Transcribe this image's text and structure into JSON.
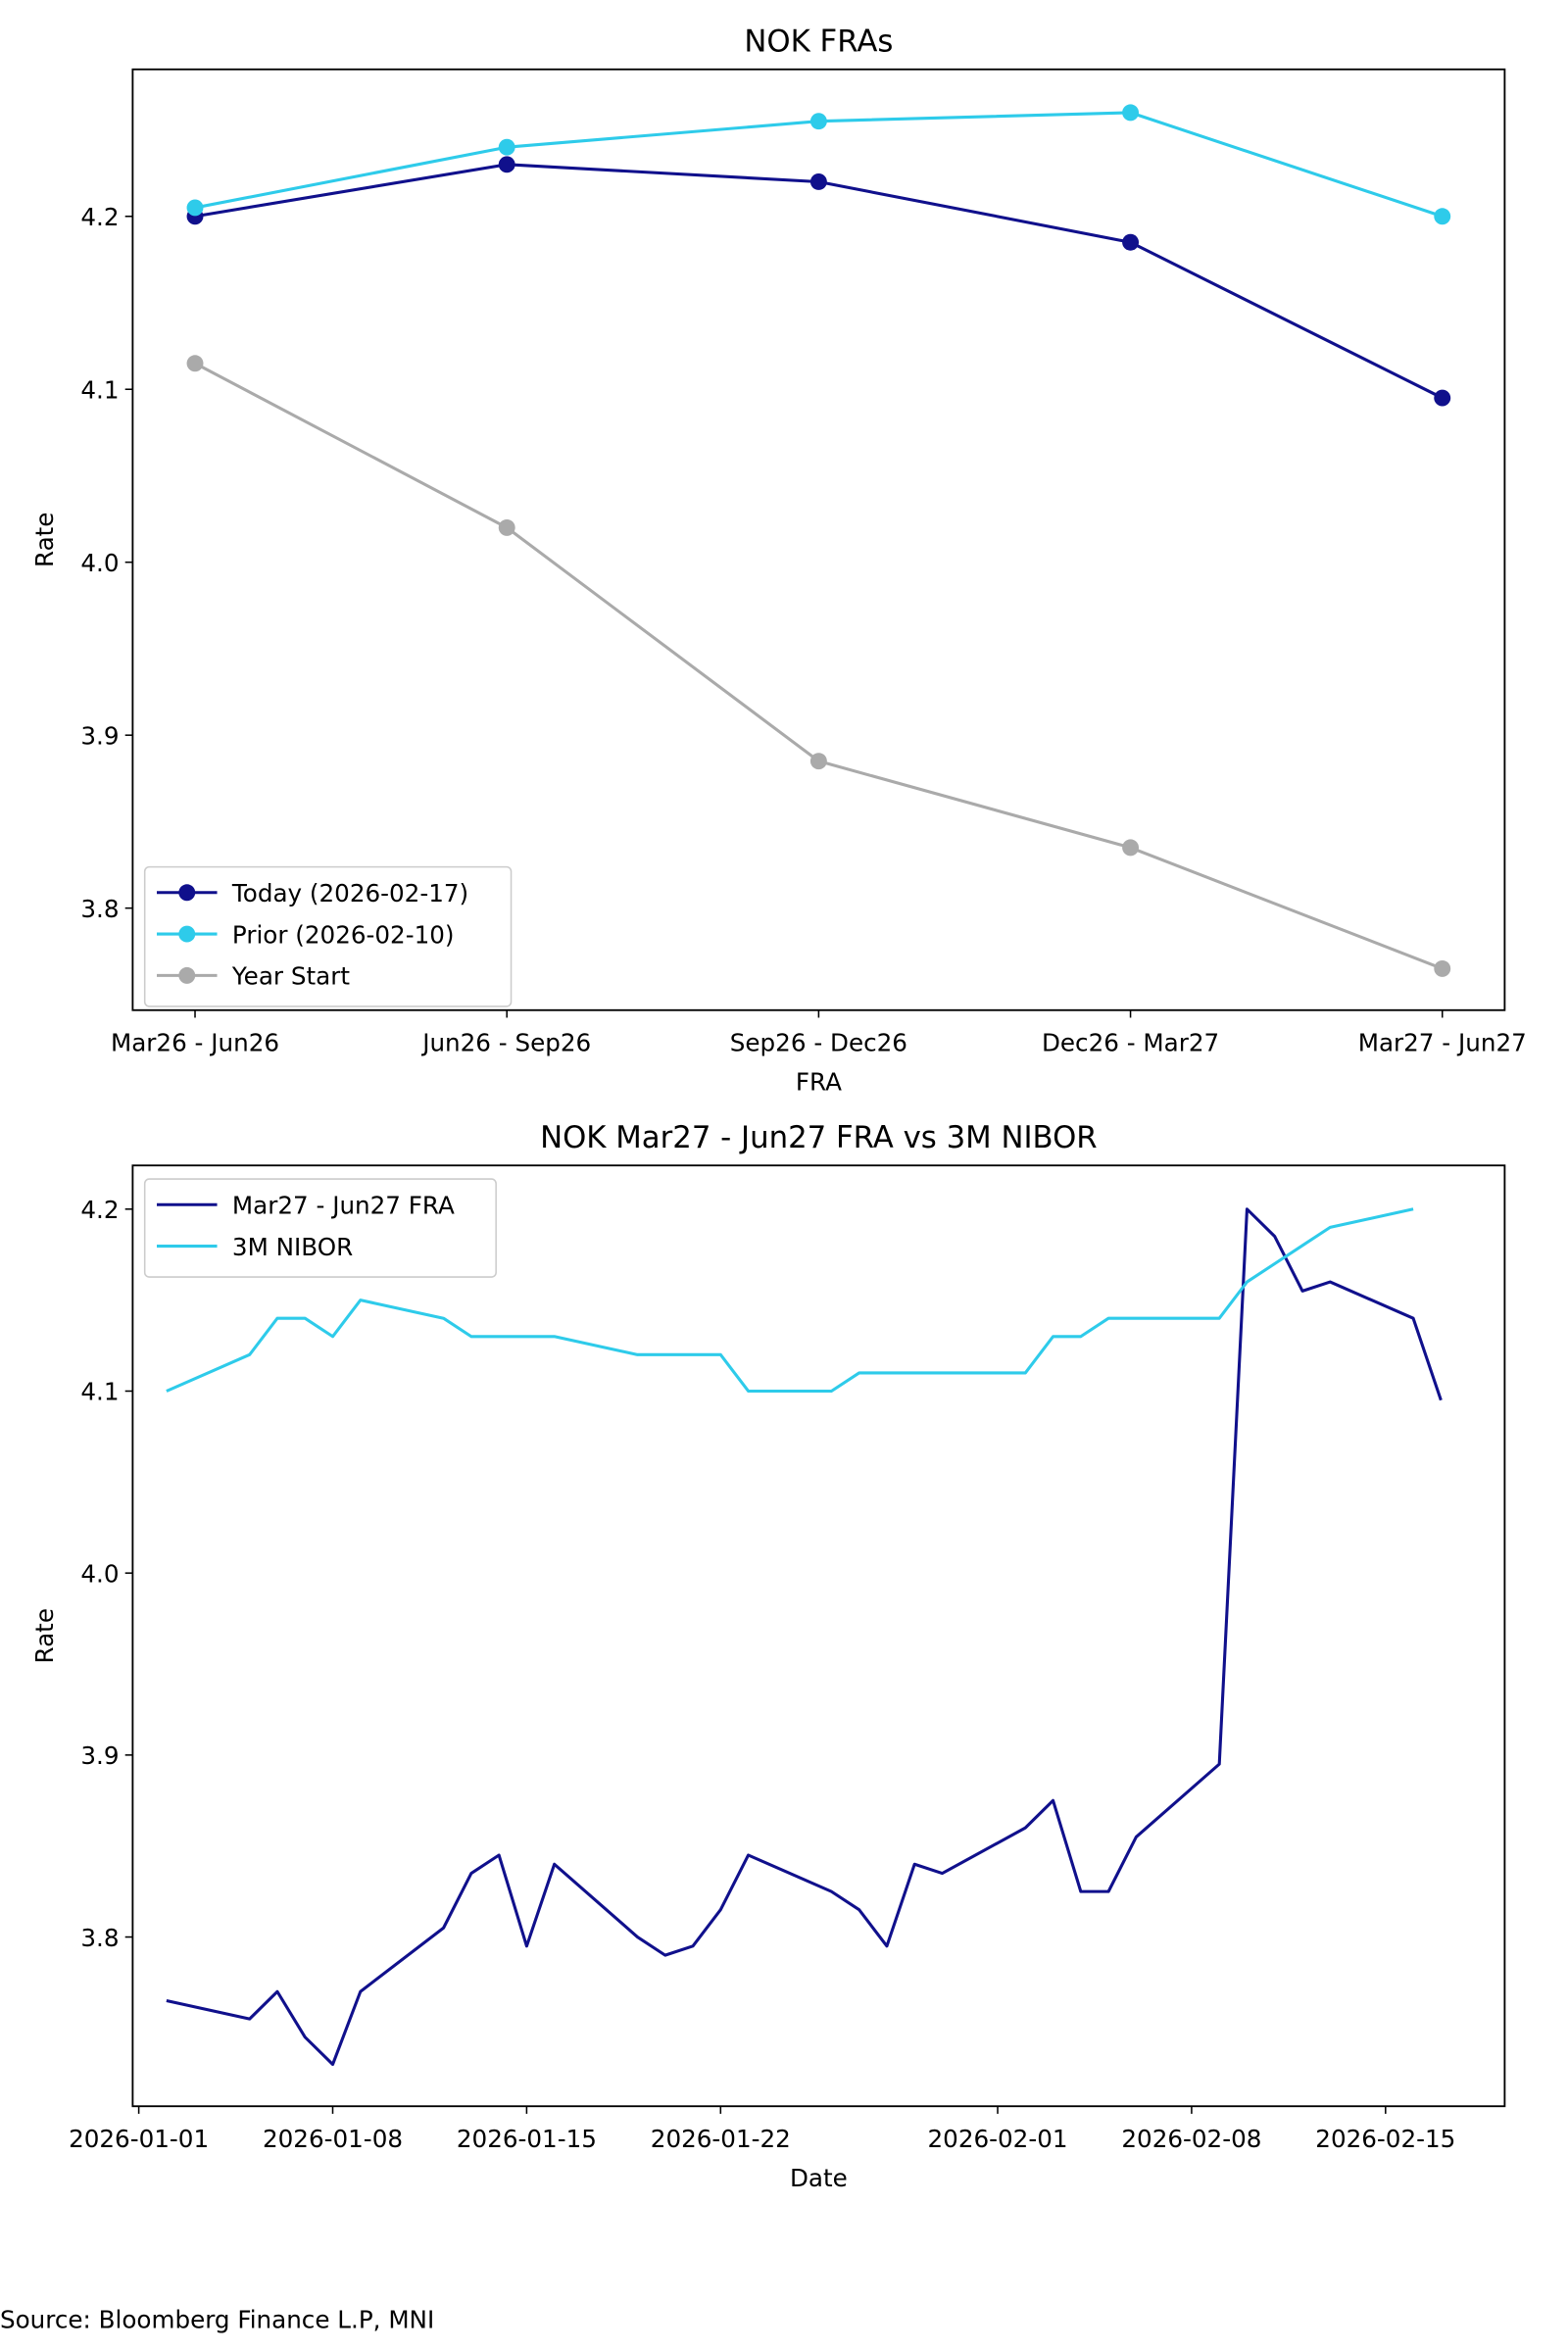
{
  "chart_data": [
    {
      "type": "line",
      "title": "NOK FRAs",
      "xlabel": "FRA",
      "ylabel": "Rate",
      "categories": [
        "Mar26 - Jun26",
        "Jun26 - Sep26",
        "Sep26 - Dec26",
        "Dec26 - Mar27",
        "Mar27 - Jun27"
      ],
      "ylim": [
        3.741,
        4.285
      ],
      "yticks": [
        3.8,
        3.9,
        4.0,
        4.1,
        4.2
      ],
      "ytick_labels": [
        "3.8",
        "3.9",
        "4.0",
        "4.1",
        "4.2"
      ],
      "grid": false,
      "legend_position": "lower-left",
      "markers": true,
      "series": [
        {
          "name": "Today (2026-02-17)",
          "color": "#10108c",
          "values": [
            4.2,
            4.23,
            4.22,
            4.185,
            4.095
          ]
        },
        {
          "name": "Prior (2026-02-10)",
          "color": "#2ecbea",
          "values": [
            4.205,
            4.24,
            4.255,
            4.26,
            4.2
          ]
        },
        {
          "name": "Year Start",
          "color": "#aaaaaa",
          "values": [
            4.115,
            4.02,
            3.885,
            3.835,
            3.765
          ]
        }
      ]
    },
    {
      "type": "line",
      "title": "NOK Mar27 - Jun27 FRA vs 3M NIBOR",
      "xlabel": "Date",
      "ylabel": "Rate",
      "xlim": [
        "2025-12-31",
        "2026-02-19"
      ],
      "ylim": [
        3.707,
        4.224
      ],
      "xticks": [
        "2026-01-01",
        "2026-01-08",
        "2026-01-15",
        "2026-01-22",
        "2026-02-01",
        "2026-02-08",
        "2026-02-15"
      ],
      "yticks": [
        3.8,
        3.9,
        4.0,
        4.1,
        4.2
      ],
      "ytick_labels": [
        "3.8",
        "3.9",
        "4.0",
        "4.1",
        "4.2"
      ],
      "grid": false,
      "legend_position": "top-left",
      "markers": false,
      "series": [
        {
          "name": "Mar27 - Jun27 FRA",
          "color": "#10108c",
          "x": [
            "2026-01-02",
            "2026-01-05",
            "2026-01-06",
            "2026-01-07",
            "2026-01-08",
            "2026-01-09",
            "2026-01-12",
            "2026-01-13",
            "2026-01-14",
            "2026-01-15",
            "2026-01-16",
            "2026-01-19",
            "2026-01-20",
            "2026-01-21",
            "2026-01-22",
            "2026-01-23",
            "2026-01-26",
            "2026-01-27",
            "2026-01-28",
            "2026-01-29",
            "2026-01-30",
            "2026-02-02",
            "2026-02-03",
            "2026-02-04",
            "2026-02-05",
            "2026-02-06",
            "2026-02-09",
            "2026-02-10",
            "2026-02-11",
            "2026-02-12",
            "2026-02-13",
            "2026-02-16",
            "2026-02-17"
          ],
          "y": [
            3.765,
            3.755,
            3.77,
            3.745,
            3.73,
            3.77,
            3.805,
            3.835,
            3.845,
            3.795,
            3.84,
            3.8,
            3.79,
            3.795,
            3.815,
            3.845,
            3.825,
            3.815,
            3.795,
            3.84,
            3.835,
            3.86,
            3.875,
            3.825,
            3.825,
            3.855,
            3.895,
            4.2,
            4.185,
            4.155,
            4.16,
            4.14,
            4.095
          ]
        },
        {
          "name": "3M NIBOR",
          "color": "#2ecbea",
          "x": [
            "2026-01-02",
            "2026-01-05",
            "2026-01-06",
            "2026-01-07",
            "2026-01-08",
            "2026-01-09",
            "2026-01-12",
            "2026-01-13",
            "2026-01-14",
            "2026-01-15",
            "2026-01-16",
            "2026-01-19",
            "2026-01-20",
            "2026-01-21",
            "2026-01-22",
            "2026-01-23",
            "2026-01-26",
            "2026-01-27",
            "2026-01-28",
            "2026-01-29",
            "2026-01-30",
            "2026-02-02",
            "2026-02-03",
            "2026-02-04",
            "2026-02-05",
            "2026-02-06",
            "2026-02-09",
            "2026-02-10",
            "2026-02-11",
            "2026-02-12",
            "2026-02-13",
            "2026-02-16"
          ],
          "y": [
            4.1,
            4.12,
            4.14,
            4.14,
            4.13,
            4.15,
            4.14,
            4.13,
            4.13,
            4.13,
            4.13,
            4.12,
            4.12,
            4.12,
            4.12,
            4.1,
            4.1,
            4.11,
            4.11,
            4.11,
            4.11,
            4.11,
            4.13,
            4.13,
            4.14,
            4.14,
            4.14,
            4.16,
            4.17,
            4.18,
            4.19,
            4.2
          ]
        }
      ]
    }
  ],
  "source": "Source: Bloomberg Finance L.P, MNI"
}
